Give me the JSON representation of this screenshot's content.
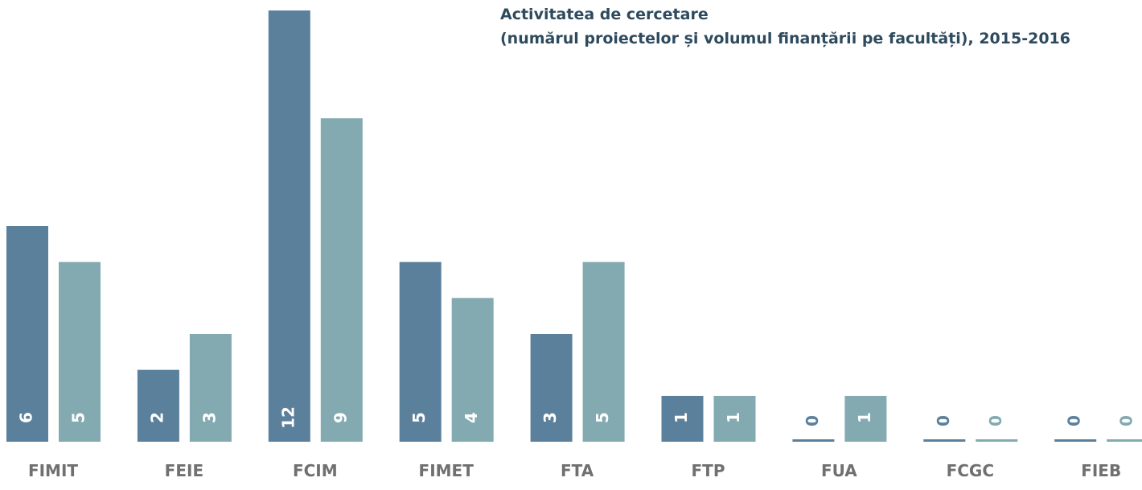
{
  "chart_data": {
    "type": "bar",
    "title": "Activitatea de cercetare",
    "subtitle": "(numărul proiectelor și volumul finanțării pe facultăți), 2015-2016",
    "categories": [
      "FIMIT",
      "FEIE",
      "FCIM",
      "FIMET",
      "FTA",
      "FTP",
      "FUA",
      "FCGC",
      "FIEB"
    ],
    "series": [
      {
        "color": "#5a809c",
        "values": [
          6,
          2,
          12,
          5,
          3,
          1,
          0,
          0,
          0
        ]
      },
      {
        "color": "#82aab0",
        "values": [
          5,
          3,
          9,
          4,
          5,
          1,
          1,
          0,
          0
        ]
      }
    ]
  }
}
